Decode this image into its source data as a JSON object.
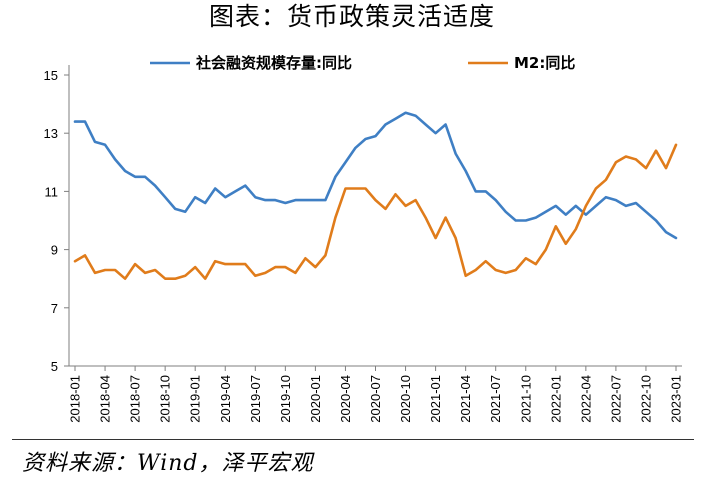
{
  "title": "图表：货币政策灵活适度",
  "source": "资料来源：Wind，泽平宏观",
  "chart_data": {
    "type": "line",
    "ylim": [
      5,
      15
    ],
    "yticks": [
      5,
      7,
      9,
      11,
      13,
      15
    ],
    "xticks": [
      "2018-01",
      "2018-04",
      "2018-07",
      "2018-10",
      "2019-01",
      "2019-04",
      "2019-07",
      "2019-10",
      "2020-01",
      "2020-04",
      "2020-07",
      "2020-10",
      "2021-01",
      "2021-04",
      "2021-07",
      "2021-10",
      "2022-01",
      "2022-04",
      "2022-07",
      "2022-10",
      "2023-01"
    ],
    "grid": false,
    "legend_position": "top",
    "series": [
      {
        "name": "社会融资规模存量:同比",
        "color": "#3f7fc4",
        "x": [
          "2018-01",
          "2018-02",
          "2018-03",
          "2018-04",
          "2018-05",
          "2018-06",
          "2018-07",
          "2018-08",
          "2018-09",
          "2018-10",
          "2018-11",
          "2018-12",
          "2019-01",
          "2019-02",
          "2019-03",
          "2019-04",
          "2019-05",
          "2019-06",
          "2019-07",
          "2019-08",
          "2019-09",
          "2019-10",
          "2019-11",
          "2019-12",
          "2020-01",
          "2020-02",
          "2020-03",
          "2020-04",
          "2020-05",
          "2020-06",
          "2020-07",
          "2020-08",
          "2020-09",
          "2020-10",
          "2020-11",
          "2020-12",
          "2021-01",
          "2021-02",
          "2021-03",
          "2021-04",
          "2021-05",
          "2021-06",
          "2021-07",
          "2021-08",
          "2021-09",
          "2021-10",
          "2021-11",
          "2021-12",
          "2022-01",
          "2022-02",
          "2022-03",
          "2022-04",
          "2022-05",
          "2022-06",
          "2022-07",
          "2022-08",
          "2022-09",
          "2022-10",
          "2022-11",
          "2022-12",
          "2023-01"
        ],
        "values": [
          13.4,
          13.4,
          12.7,
          12.6,
          12.1,
          11.7,
          11.5,
          11.5,
          11.2,
          10.8,
          10.4,
          10.3,
          10.8,
          10.6,
          11.1,
          10.8,
          11.0,
          11.2,
          10.8,
          10.7,
          10.7,
          10.6,
          10.7,
          10.7,
          10.7,
          10.7,
          11.5,
          12.0,
          12.5,
          12.8,
          12.9,
          13.3,
          13.5,
          13.7,
          13.6,
          13.3,
          13.0,
          13.3,
          12.3,
          11.7,
          11.0,
          11.0,
          10.7,
          10.3,
          10.0,
          10.0,
          10.1,
          10.3,
          10.5,
          10.2,
          10.5,
          10.2,
          10.5,
          10.8,
          10.7,
          10.5,
          10.6,
          10.3,
          10.0,
          9.6,
          9.4
        ]
      },
      {
        "name": "M2:同比",
        "color": "#e07c1b",
        "x": [
          "2018-01",
          "2018-02",
          "2018-03",
          "2018-04",
          "2018-05",
          "2018-06",
          "2018-07",
          "2018-08",
          "2018-09",
          "2018-10",
          "2018-11",
          "2018-12",
          "2019-01",
          "2019-02",
          "2019-03",
          "2019-04",
          "2019-05",
          "2019-06",
          "2019-07",
          "2019-08",
          "2019-09",
          "2019-10",
          "2019-11",
          "2019-12",
          "2020-01",
          "2020-02",
          "2020-03",
          "2020-04",
          "2020-05",
          "2020-06",
          "2020-07",
          "2020-08",
          "2020-09",
          "2020-10",
          "2020-11",
          "2020-12",
          "2021-01",
          "2021-02",
          "2021-03",
          "2021-04",
          "2021-05",
          "2021-06",
          "2021-07",
          "2021-08",
          "2021-09",
          "2021-10",
          "2021-11",
          "2021-12",
          "2022-01",
          "2022-02",
          "2022-03",
          "2022-04",
          "2022-05",
          "2022-06",
          "2022-07",
          "2022-08",
          "2022-09",
          "2022-10",
          "2022-11",
          "2022-12",
          "2023-01"
        ],
        "values": [
          8.6,
          8.8,
          8.2,
          8.3,
          8.3,
          8.0,
          8.5,
          8.2,
          8.3,
          8.0,
          8.0,
          8.1,
          8.4,
          8.0,
          8.6,
          8.5,
          8.5,
          8.5,
          8.1,
          8.2,
          8.4,
          8.4,
          8.2,
          8.7,
          8.4,
          8.8,
          10.1,
          11.1,
          11.1,
          11.1,
          10.7,
          10.4,
          10.9,
          10.5,
          10.7,
          10.1,
          9.4,
          10.1,
          9.4,
          8.1,
          8.3,
          8.6,
          8.3,
          8.2,
          8.3,
          8.7,
          8.5,
          9.0,
          9.8,
          9.2,
          9.7,
          10.5,
          11.1,
          11.4,
          12.0,
          12.2,
          12.1,
          11.8,
          12.4,
          11.8,
          12.6
        ]
      }
    ]
  }
}
